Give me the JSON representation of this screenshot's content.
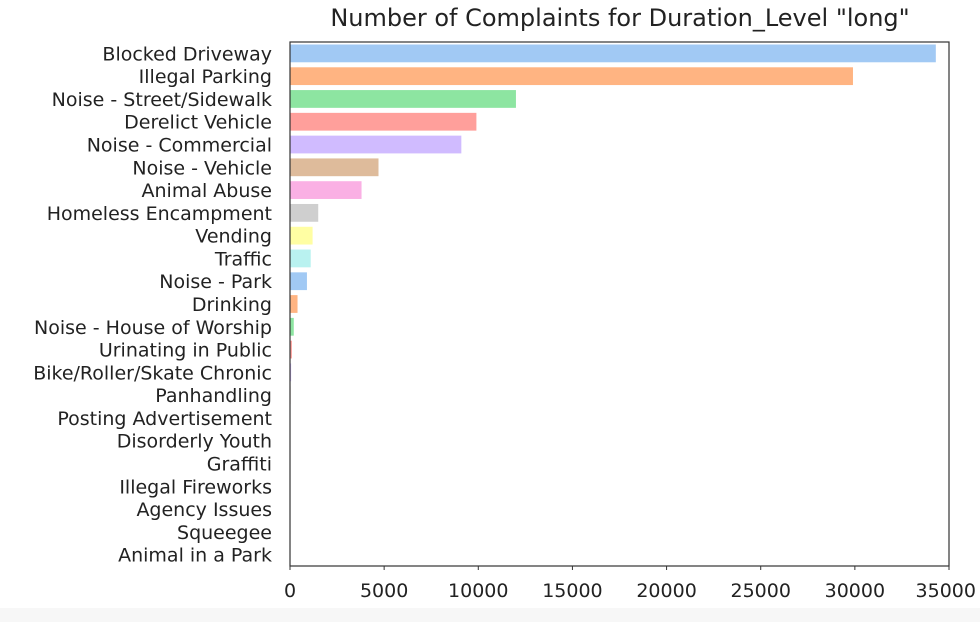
{
  "chart_data": {
    "type": "bar",
    "orientation": "horizontal",
    "title": "Number of Complaints for Duration_Level \"long\"",
    "xlabel": "",
    "ylabel": "",
    "xlim": [
      0,
      35000
    ],
    "xticks": [
      0,
      5000,
      10000,
      15000,
      20000,
      25000,
      30000,
      35000
    ],
    "xtick_labels": [
      "0",
      "5000",
      "10000",
      "15000",
      "20000",
      "25000",
      "30000",
      "35000"
    ],
    "grid": false,
    "categories": [
      "Blocked Driveway",
      "Illegal Parking",
      "Noise - Street/Sidewalk",
      "Derelict Vehicle",
      "Noise - Commercial",
      "Noise - Vehicle",
      "Animal Abuse",
      "Homeless Encampment",
      "Vending",
      "Traffic",
      "Noise - Park",
      "Drinking",
      "Noise - House of Worship",
      "Urinating in Public",
      "Bike/Roller/Skate Chronic",
      "Panhandling",
      "Posting Advertisement",
      "Disorderly Youth",
      "Graffiti",
      "Illegal Fireworks",
      "Agency Issues",
      "Squeegee",
      "Animal in a Park"
    ],
    "values": [
      34300,
      29900,
      12000,
      9900,
      9100,
      4700,
      3800,
      1500,
      1200,
      1100,
      900,
      400,
      200,
      100,
      60,
      30,
      20,
      15,
      10,
      8,
      5,
      3,
      2
    ],
    "colors": [
      "#a1c9f4",
      "#ffb482",
      "#8de5a1",
      "#ff9f9b",
      "#d0bbff",
      "#debb9b",
      "#fab0e4",
      "#cfcfcf",
      "#fffea3",
      "#b9f2f0",
      "#a1c9f4",
      "#ffb482",
      "#8de5a1",
      "#ff9f9b",
      "#d0bbff",
      "#debb9b",
      "#fab0e4",
      "#cfcfcf",
      "#fffea3",
      "#b9f2f0",
      "#a1c9f4",
      "#ffb482",
      "#8de5a1"
    ]
  }
}
